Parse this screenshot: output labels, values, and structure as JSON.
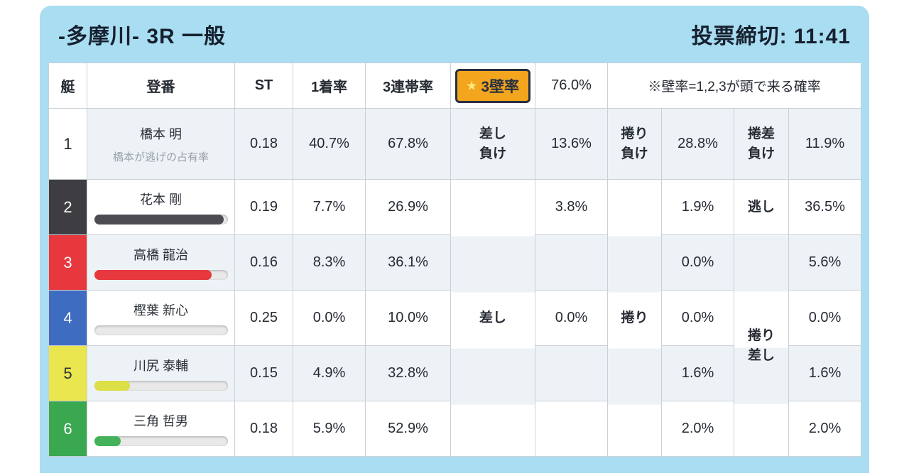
{
  "header": {
    "title": "-多摩川- 3R 一般",
    "deadline": "投票締切: 11:41"
  },
  "columns": {
    "boat": "艇",
    "entry": "登番",
    "st": "ST",
    "win": "1着率",
    "top3": "3連帯率"
  },
  "wall": {
    "star": "★",
    "label": "3壁率",
    "value": "76.0%",
    "note": "※壁率=1,2,3が頭で来る確率"
  },
  "kimarite": {
    "sashi_make": [
      "差し",
      "負け"
    ],
    "makuri_make": [
      "捲り",
      "負け"
    ],
    "makurizashi_make": [
      "捲差",
      "負け"
    ],
    "sashi": "差し",
    "makuri": "捲り",
    "nigashi": "逃し",
    "makurizashi": [
      "捲り",
      "差し"
    ]
  },
  "rows": [
    {
      "boat": "1",
      "name": "橋本 明",
      "subtitle": "橋本が逃げの占有率",
      "st": "0.18",
      "win": "40.7%",
      "top3": "67.8%",
      "sashi_pct": "13.6%",
      "makuri_pct": "28.8%",
      "makurizashi_pct": "11.9%",
      "boat_bg": "#ffffff",
      "boat_fg": "#232832"
    },
    {
      "boat": "2",
      "name": "花本 剛",
      "st": "0.19",
      "win": "7.7%",
      "top3": "26.9%",
      "sashi_pct": "3.8%",
      "makuri_pct": "1.9%",
      "makurizashi_pct": "36.5%",
      "boat_bg": "#3d3d42",
      "boat_fg": "#ffffff",
      "bar": {
        "pct": 97,
        "color": "#4c4c52"
      }
    },
    {
      "boat": "3",
      "name": "高橋 龍治",
      "st": "0.16",
      "win": "8.3%",
      "top3": "36.1%",
      "sashi_pct": "",
      "makuri_pct": "0.0%",
      "makurizashi_pct": "5.6%",
      "boat_bg": "#e7383e",
      "boat_fg": "#ffffff",
      "bar": {
        "pct": 88,
        "color": "#e7383e"
      }
    },
    {
      "boat": "4",
      "name": "樫葉 新心",
      "st": "0.25",
      "win": "0.0%",
      "top3": "10.0%",
      "sashi_pct": "0.0%",
      "makuri_pct": "0.0%",
      "makurizashi_pct": "0.0%",
      "boat_bg": "#3e6cc0",
      "boat_fg": "#ffffff",
      "bar": {
        "pct": 0,
        "color": "#3e6cc0"
      }
    },
    {
      "boat": "5",
      "name": "川尻 泰輔",
      "st": "0.15",
      "win": "4.9%",
      "top3": "32.8%",
      "sashi_pct": "",
      "makuri_pct": "1.6%",
      "makurizashi_pct": "1.6%",
      "boat_bg": "#e9e64f",
      "boat_fg": "#2a2f36",
      "bar": {
        "pct": 27,
        "color": "#dcdf45"
      }
    },
    {
      "boat": "6",
      "name": "三角 哲男",
      "st": "0.18",
      "win": "5.9%",
      "top3": "52.9%",
      "sashi_pct": "",
      "makuri_pct": "2.0%",
      "makurizashi_pct": "2.0%",
      "boat_bg": "#3aa851",
      "boat_fg": "#ffffff",
      "bar": {
        "pct": 20,
        "color": "#43b25a"
      }
    }
  ],
  "colors": {
    "panel_blue": "#a9ddf1",
    "stripe": "#edf2f7",
    "accent_orange": "#f3a51e",
    "chip_border": "#273040",
    "text_dark": "#17202f"
  }
}
